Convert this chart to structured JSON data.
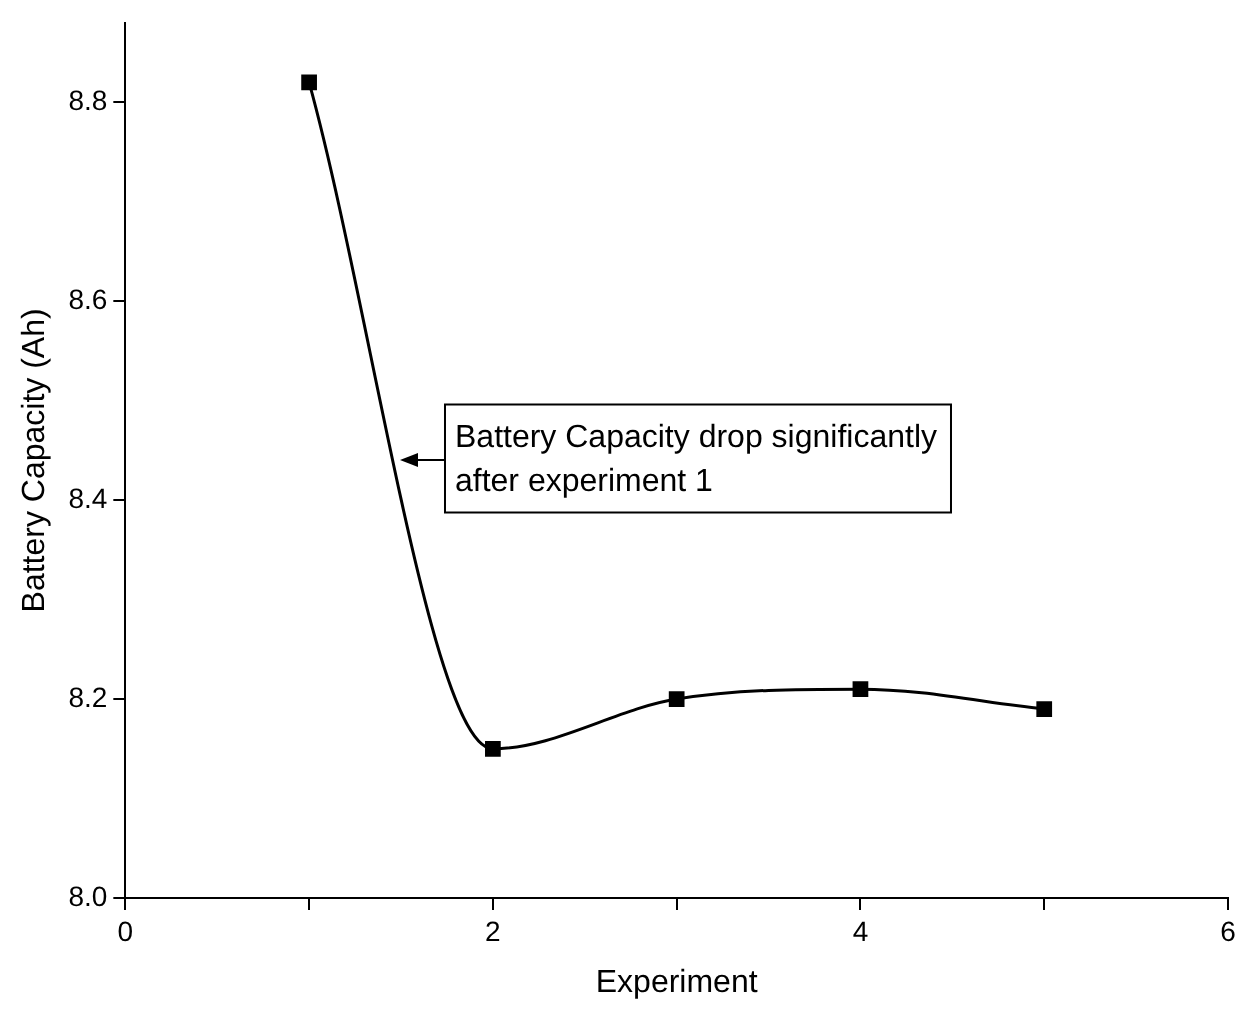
{
  "chart_data": {
    "type": "line",
    "xlabel": "Experiment",
    "ylabel": "Battery Capacity (Ah)",
    "x": [
      1,
      2,
      3,
      4,
      5
    ],
    "series": [
      {
        "color": "#000000",
        "values": [
          8.82,
          8.15,
          8.2,
          8.21,
          8.19
        ]
      }
    ],
    "xlim": [
      0,
      6
    ],
    "xticks": [
      0,
      {
        "value": 1,
        "label": null
      },
      2,
      {
        "value": 3,
        "label": null
      },
      4,
      {
        "value": 5,
        "label": null
      },
      6
    ],
    "ylim": [
      8.0,
      8.88
    ],
    "yticks": [
      {
        "value": 8.0,
        "label": "8.0"
      },
      8.2,
      8.4,
      8.6,
      8.8
    ],
    "grid": false,
    "legend": false,
    "marker": "square",
    "line_style": "solid",
    "annotations": [
      {
        "text": "Battery Capacity drop significantly\nafter experiment 1",
        "x": 1.5,
        "y": 8.44
      }
    ]
  }
}
